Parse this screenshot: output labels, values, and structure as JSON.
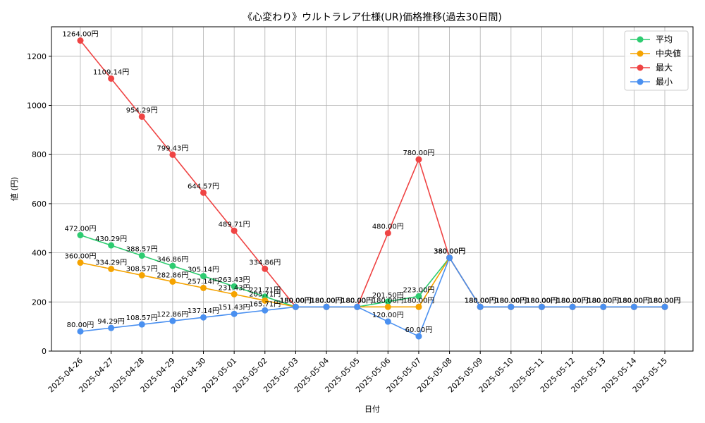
{
  "chart_data": {
    "type": "line",
    "title": "《心変わり》ウルトラレア仕様(UR)価格推移(過去30日間)",
    "xlabel": "日付",
    "ylabel": "値 (円)",
    "ylim": [
      0,
      1320
    ],
    "yticks": [
      0,
      200,
      400,
      600,
      800,
      1000,
      1200
    ],
    "grid": true,
    "legend_position": "top-right",
    "categories": [
      "2025-04-26",
      "2025-04-27",
      "2025-04-28",
      "2025-04-29",
      "2025-04-30",
      "2025-05-01",
      "2025-05-02",
      "2025-05-03",
      "2025-05-04",
      "2025-05-05",
      "2025-05-06",
      "2025-05-07",
      "2025-05-08",
      "2025-05-09",
      "2025-05-10",
      "2025-05-11",
      "2025-05-12",
      "2025-05-13",
      "2025-05-14",
      "2025-05-15"
    ],
    "series": [
      {
        "name": "平均",
        "color": "#2ecc71",
        "values": [
          472.0,
          430.29,
          388.57,
          346.86,
          305.14,
          263.43,
          221.71,
          180.0,
          180.0,
          180.0,
          201.5,
          223.0,
          380.0,
          180.0,
          180.0,
          180.0,
          180.0,
          180.0,
          180.0,
          180.0
        ],
        "labels": [
          "472.00円",
          "430.29円",
          "388.57円",
          "346.86円",
          "305.14円",
          "263.43円",
          "221.71円",
          "180.00円",
          "180.00円",
          "180.00円",
          "201.50円",
          "223.00円",
          "380.00円",
          "180.00円",
          "180.00円",
          "180.00円",
          "180.00円",
          "180.00円",
          "180.00円",
          "180.00円"
        ]
      },
      {
        "name": "中央値",
        "color": "#f5a300",
        "values": [
          360.0,
          334.29,
          308.57,
          282.86,
          257.14,
          231.43,
          205.71,
          180.0,
          180.0,
          180.0,
          180.0,
          180.0,
          380.0,
          180.0,
          180.0,
          180.0,
          180.0,
          180.0,
          180.0,
          180.0
        ],
        "labels": [
          "360.00円",
          "334.29円",
          "308.57円",
          "282.86円",
          "257.14円",
          "231.43円",
          "205.71円",
          "180.00円",
          "180.00円",
          "180.00円",
          "180.00円",
          "180.00円",
          "380.00円",
          "180.00円",
          "180.00円",
          "180.00円",
          "180.00円",
          "180.00円",
          "180.00円",
          "180.00円"
        ]
      },
      {
        "name": "最大",
        "color": "#ef4444",
        "values": [
          1264.0,
          1109.14,
          954.29,
          799.43,
          644.57,
          489.71,
          334.86,
          180.0,
          180.0,
          180.0,
          480.0,
          780.0,
          380.0,
          180.0,
          180.0,
          180.0,
          180.0,
          180.0,
          180.0,
          180.0
        ],
        "labels": [
          "1264.00円",
          "1109.14円",
          "954.29円",
          "799.43円",
          "644.57円",
          "489.71円",
          "334.86円",
          "180.00円",
          "180.00円",
          "180.00円",
          "480.00円",
          "780.00円",
          "380.00円",
          "180.00円",
          "180.00円",
          "180.00円",
          "180.00円",
          "180.00円",
          "180.00円",
          "180.00円"
        ]
      },
      {
        "name": "最小",
        "color": "#4a90f0",
        "values": [
          80.0,
          94.29,
          108.57,
          122.86,
          137.14,
          151.43,
          165.71,
          180.0,
          180.0,
          180.0,
          120.0,
          60.0,
          380.0,
          180.0,
          180.0,
          180.0,
          180.0,
          180.0,
          180.0,
          180.0
        ],
        "labels": [
          "80.00円",
          "94.29円",
          "108.57円",
          "122.86円",
          "137.14円",
          "151.43円",
          "165.71円",
          "180.00円",
          "180.00円",
          "180.00円",
          "120.00円",
          "60.00円",
          "380.00円",
          "180.00円",
          "180.00円",
          "180.00円",
          "180.00円",
          "180.00円",
          "180.00円",
          "180.00円"
        ]
      }
    ]
  }
}
